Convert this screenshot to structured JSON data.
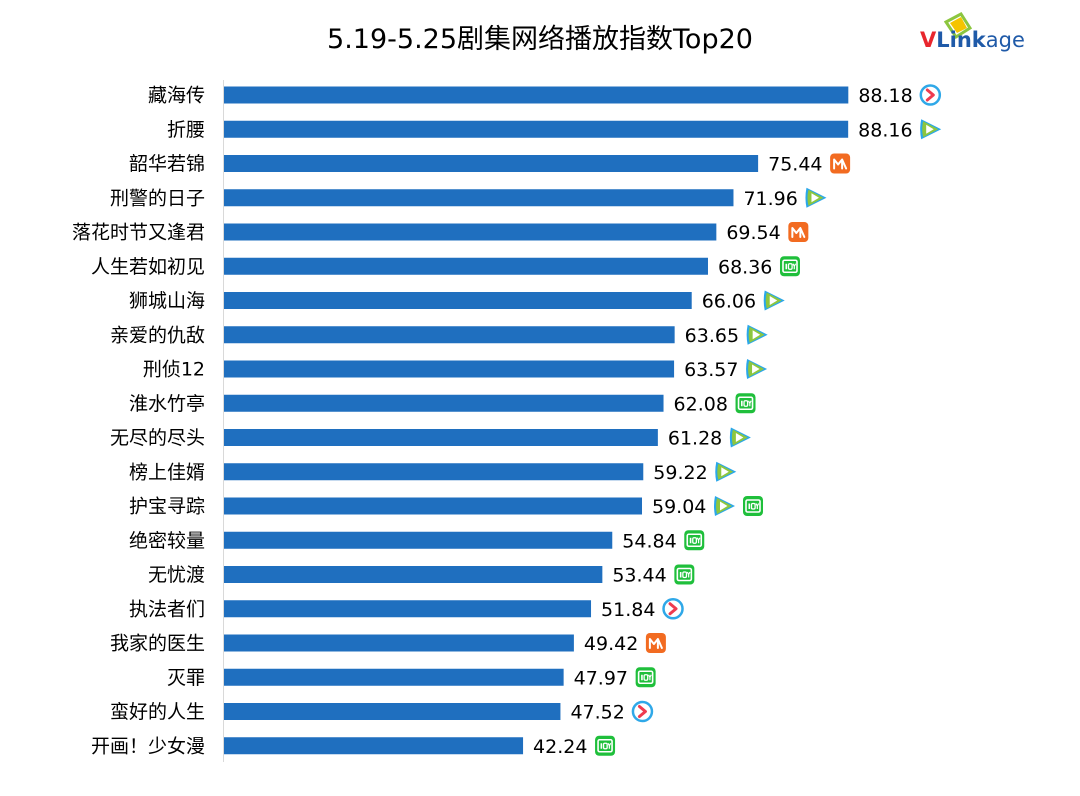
{
  "chart_data": {
    "type": "bar",
    "orientation": "horizontal",
    "title": "5.19-5.25剧集网络播放指数Top20",
    "categories": [
      "藏海传",
      "折腰",
      "韶华若锦",
      "刑警的日子",
      "落花时节又逢君",
      "人生若如初见",
      "狮城山海",
      "亲爱的仇敌",
      "刑侦12",
      "淮水竹亭",
      "无尽的尽头",
      "榜上佳婿",
      "护宝寻踪",
      "绝密较量",
      "无忧渡",
      "执法者们",
      "我家的医生",
      "灭罪",
      "蛮好的人生",
      "开画！少女漫"
    ],
    "values": [
      88.18,
      88.16,
      75.44,
      71.96,
      69.54,
      68.36,
      66.06,
      63.65,
      63.57,
      62.08,
      61.28,
      59.22,
      59.04,
      54.84,
      53.44,
      51.84,
      49.42,
      47.97,
      47.52,
      42.24
    ],
    "value_labels": [
      "88.18",
      "88.16",
      "75.44",
      "71.96",
      "69.54",
      "68.36",
      "66.06",
      "63.65",
      "63.57",
      "62.08",
      "61.28",
      "59.22",
      "59.04",
      "54.84",
      "53.44",
      "51.84",
      "49.42",
      "47.97",
      "47.52",
      "42.24"
    ],
    "platforms": [
      [
        "youku"
      ],
      [
        "tencent"
      ],
      [
        "mango"
      ],
      [
        "tencent"
      ],
      [
        "mango"
      ],
      [
        "iqiyi"
      ],
      [
        "tencent"
      ],
      [
        "tencent"
      ],
      [
        "tencent"
      ],
      [
        "iqiyi"
      ],
      [
        "tencent"
      ],
      [
        "tencent"
      ],
      [
        "tencent",
        "iqiyi"
      ],
      [
        "iqiyi"
      ],
      [
        "iqiyi"
      ],
      [
        "youku"
      ],
      [
        "mango"
      ],
      [
        "iqiyi"
      ],
      [
        "youku"
      ],
      [
        "iqiyi"
      ]
    ],
    "bar_color": "#1f6fbf",
    "xlim": [
      0,
      100
    ],
    "grid": false,
    "legend": "none"
  },
  "logo": {
    "text_v": "V",
    "text_link": "Link",
    "text_age": "age"
  },
  "colors": {
    "logo_red": "#e8262d",
    "logo_blue": "#1f5aa8",
    "logo_green": "#8cc63f",
    "logo_yellow": "#f5c400",
    "youku_blue": "#2fa8e8",
    "youku_red": "#ef3b4f",
    "tencent_blue": "#2aa7ea",
    "tencent_green": "#8dc63f",
    "tencent_orange": "#f5a623",
    "mango_orange": "#f26b21",
    "iqiyi_green": "#1fbf3b"
  }
}
